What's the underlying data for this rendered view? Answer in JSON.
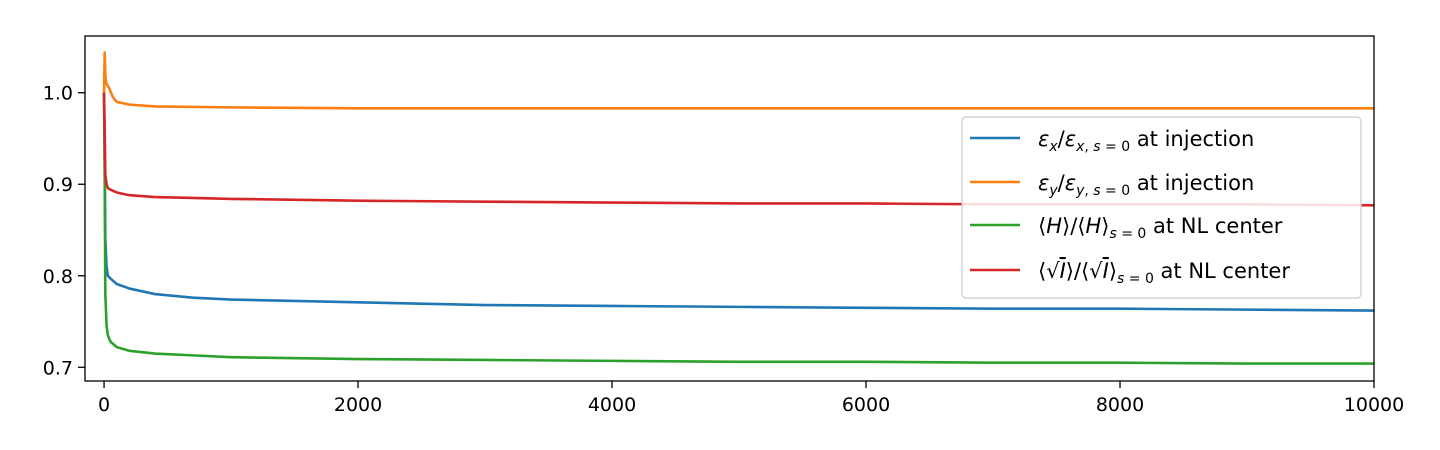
{
  "chart_data": {
    "type": "line",
    "title": "",
    "xlabel": "",
    "ylabel": "",
    "xlim": [
      -150,
      10000
    ],
    "ylim": [
      0.685,
      1.062
    ],
    "x_ticks": [
      0,
      2000,
      4000,
      6000,
      8000,
      10000
    ],
    "x_tick_labels": [
      "0",
      "2000",
      "4000",
      "6000",
      "8000",
      "10000"
    ],
    "y_ticks": [
      0.7,
      0.8,
      0.9,
      1.0
    ],
    "y_tick_labels": [
      "0.7",
      "0.8",
      "0.9",
      "1.0"
    ],
    "grid": false,
    "legend_position": "center-right",
    "series": [
      {
        "name": "εx/εx, s = 0 at injection",
        "color": "#1f77b4",
        "x": [
          0,
          5,
          10,
          20,
          30,
          50,
          100,
          200,
          400,
          700,
          1000,
          2000,
          3000,
          4000,
          5000,
          6000,
          7000,
          8000,
          9000,
          10000
        ],
        "y": [
          1.0,
          0.93,
          0.84,
          0.81,
          0.8,
          0.797,
          0.791,
          0.786,
          0.78,
          0.776,
          0.774,
          0.771,
          0.768,
          0.767,
          0.766,
          0.765,
          0.764,
          0.764,
          0.763,
          0.762
        ]
      },
      {
        "name": "εy/εy, s = 0 at injection",
        "color": "#ff7f0e",
        "x": [
          0,
          5,
          10,
          15,
          20,
          40,
          70,
          100,
          200,
          400,
          1000,
          2000,
          4000,
          6000,
          8000,
          10000
        ],
        "y": [
          1.0,
          1.044,
          1.02,
          1.012,
          1.01,
          1.005,
          0.995,
          0.99,
          0.987,
          0.985,
          0.984,
          0.983,
          0.983,
          0.983,
          0.983,
          0.983
        ]
      },
      {
        "name": "⟨H⟩/⟨H⟩s = 0 at NL center",
        "color": "#2ca02c",
        "x": [
          0,
          5,
          10,
          20,
          30,
          50,
          100,
          200,
          400,
          700,
          1000,
          2000,
          3000,
          4000,
          5000,
          6000,
          7000,
          8000,
          9000,
          10000
        ],
        "y": [
          1.0,
          0.91,
          0.78,
          0.745,
          0.735,
          0.728,
          0.722,
          0.718,
          0.715,
          0.713,
          0.711,
          0.709,
          0.708,
          0.707,
          0.706,
          0.706,
          0.705,
          0.705,
          0.704,
          0.704
        ]
      },
      {
        "name": "⟨√I⟩/⟨√I⟩s = 0 at NL center",
        "color": "#d62728",
        "x": [
          0,
          5,
          10,
          20,
          30,
          50,
          100,
          200,
          400,
          700,
          1000,
          2000,
          3000,
          4000,
          5000,
          6000,
          7000,
          8000,
          9000,
          10000
        ],
        "y": [
          1.0,
          0.96,
          0.91,
          0.9,
          0.896,
          0.894,
          0.891,
          0.888,
          0.886,
          0.885,
          0.884,
          0.882,
          0.881,
          0.88,
          0.879,
          0.879,
          0.878,
          0.878,
          0.878,
          0.877
        ]
      }
    ]
  }
}
